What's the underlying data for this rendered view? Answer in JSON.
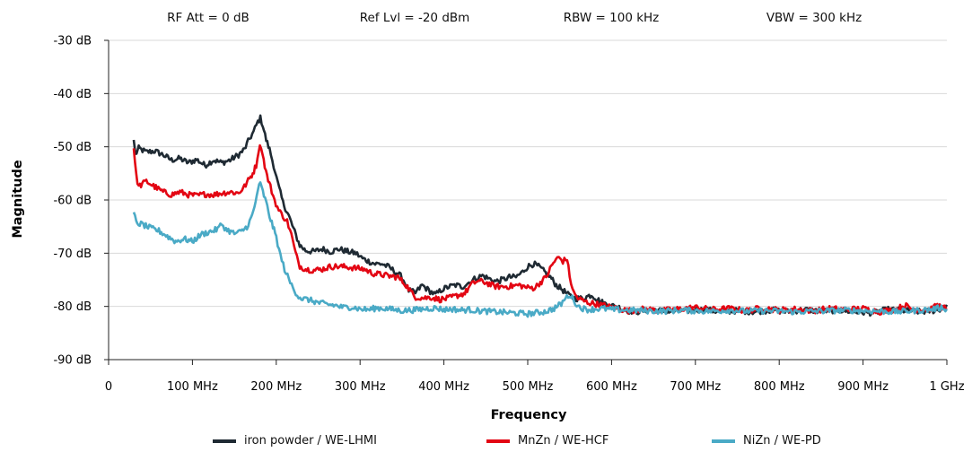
{
  "header": {
    "rf_att": "RF Att = 0 dB",
    "ref_lvl": "Ref Lvl = -20 dBm",
    "rbw": "RBW = 100 kHz",
    "vbw": "VBW = 300 kHz"
  },
  "chart_data": {
    "type": "line",
    "title": "",
    "xlabel": "Frequency",
    "ylabel": "Magnitude",
    "xlim": [
      0,
      1000
    ],
    "ylim": [
      -90,
      -30
    ],
    "x_unit": "MHz",
    "y_unit": "dB",
    "grid": {
      "horizontal": true,
      "vertical": false
    },
    "legend_position": "bottom",
    "x_ticks": [
      {
        "value": 0,
        "label": "0"
      },
      {
        "value": 100,
        "label": "100 MHz"
      },
      {
        "value": 200,
        "label": "200 MHz"
      },
      {
        "value": 300,
        "label": "300 MHz"
      },
      {
        "value": 400,
        "label": "400 MHz"
      },
      {
        "value": 500,
        "label": "500 MHz"
      },
      {
        "value": 600,
        "label": "600 MHz"
      },
      {
        "value": 700,
        "label": "700 MHz"
      },
      {
        "value": 800,
        "label": "800 MHz"
      },
      {
        "value": 900,
        "label": "900 MHz"
      },
      {
        "value": 1000,
        "label": "1 GHz"
      }
    ],
    "y_ticks": [
      {
        "value": -30,
        "label": "-30 dB"
      },
      {
        "value": -40,
        "label": "-40 dB"
      },
      {
        "value": -50,
        "label": "-50 dB"
      },
      {
        "value": -60,
        "label": "-60 dB"
      },
      {
        "value": -70,
        "label": "-70 dB"
      },
      {
        "value": -80,
        "label": "-80 dB"
      },
      {
        "value": -90,
        "label": "-90 dB"
      }
    ],
    "series": [
      {
        "name": "iron powder / WE-LHMI",
        "color": "#1f2a33",
        "points": [
          [
            30,
            -48.7
          ],
          [
            32,
            -51.5
          ],
          [
            36,
            -50.3
          ],
          [
            45,
            -51
          ],
          [
            55,
            -50.8
          ],
          [
            65,
            -51.5
          ],
          [
            75,
            -52.5
          ],
          [
            85,
            -52.2
          ],
          [
            95,
            -53
          ],
          [
            105,
            -52.4
          ],
          [
            115,
            -53.5
          ],
          [
            125,
            -52.5
          ],
          [
            135,
            -53
          ],
          [
            145,
            -52.5
          ],
          [
            155,
            -51.5
          ],
          [
            162,
            -50.5
          ],
          [
            168,
            -48.5
          ],
          [
            173,
            -47.2
          ],
          [
            178,
            -45.3
          ],
          [
            181,
            -44.6
          ],
          [
            184,
            -46
          ],
          [
            188,
            -48.7
          ],
          [
            192,
            -50.5
          ],
          [
            197,
            -53.5
          ],
          [
            202,
            -57
          ],
          [
            208,
            -60.5
          ],
          [
            215,
            -63
          ],
          [
            222,
            -66
          ],
          [
            228,
            -68.5
          ],
          [
            235,
            -69.5
          ],
          [
            245,
            -69.7
          ],
          [
            255,
            -69.2
          ],
          [
            265,
            -69.7
          ],
          [
            275,
            -69.2
          ],
          [
            285,
            -69.7
          ],
          [
            295,
            -70
          ],
          [
            303,
            -71
          ],
          [
            310,
            -71.5
          ],
          [
            318,
            -72
          ],
          [
            326,
            -72
          ],
          [
            334,
            -72.6
          ],
          [
            342,
            -73.5
          ],
          [
            350,
            -74.5
          ],
          [
            358,
            -77
          ],
          [
            366,
            -77.5
          ],
          [
            374,
            -76
          ],
          [
            382,
            -77
          ],
          [
            390,
            -77.8
          ],
          [
            398,
            -76.8
          ],
          [
            406,
            -76.3
          ],
          [
            414,
            -76
          ],
          [
            422,
            -76.3
          ],
          [
            430,
            -75.5
          ],
          [
            438,
            -74.7
          ],
          [
            446,
            -74.2
          ],
          [
            454,
            -74.8
          ],
          [
            462,
            -75.3
          ],
          [
            470,
            -75
          ],
          [
            478,
            -74.5
          ],
          [
            486,
            -74.5
          ],
          [
            494,
            -73.5
          ],
          [
            500,
            -72.5
          ],
          [
            507,
            -72
          ],
          [
            513,
            -72.5
          ],
          [
            520,
            -73.5
          ],
          [
            527,
            -74.5
          ],
          [
            534,
            -76
          ],
          [
            541,
            -76.8
          ],
          [
            548,
            -77.8
          ],
          [
            556,
            -78.5
          ],
          [
            566,
            -78.5
          ],
          [
            576,
            -77.8
          ],
          [
            586,
            -79
          ],
          [
            596,
            -79.8
          ],
          [
            606,
            -80
          ],
          [
            618,
            -80.8
          ],
          [
            630,
            -81
          ],
          [
            650,
            -80.6
          ],
          [
            670,
            -81
          ],
          [
            690,
            -80.8
          ],
          [
            710,
            -80.6
          ],
          [
            730,
            -81
          ],
          [
            750,
            -80.8
          ],
          [
            770,
            -81
          ],
          [
            790,
            -80.7
          ],
          [
            810,
            -81
          ],
          [
            830,
            -80.6
          ],
          [
            850,
            -80.9
          ],
          [
            870,
            -80.7
          ],
          [
            890,
            -81
          ],
          [
            910,
            -81.2
          ],
          [
            930,
            -80.6
          ],
          [
            950,
            -80.8
          ],
          [
            970,
            -81
          ],
          [
            990,
            -80.7
          ],
          [
            995,
            -80.2
          ],
          [
            1000,
            -79.7
          ]
        ]
      },
      {
        "name": "MnZn / WE-HCF",
        "color": "#e30613",
        "points": [
          [
            30,
            -50.3
          ],
          [
            33,
            -55.5
          ],
          [
            36,
            -57.5
          ],
          [
            40,
            -57
          ],
          [
            45,
            -56.5
          ],
          [
            55,
            -57.5
          ],
          [
            65,
            -58.5
          ],
          [
            75,
            -59
          ],
          [
            85,
            -58.5
          ],
          [
            95,
            -59
          ],
          [
            105,
            -59.2
          ],
          [
            115,
            -58.9
          ],
          [
            125,
            -59
          ],
          [
            135,
            -58.7
          ],
          [
            145,
            -58.5
          ],
          [
            155,
            -58.7
          ],
          [
            162,
            -57.5
          ],
          [
            168,
            -56
          ],
          [
            172,
            -55
          ],
          [
            176,
            -53.5
          ],
          [
            179,
            -50.5
          ],
          [
            182,
            -49.8
          ],
          [
            185,
            -52.5
          ],
          [
            189,
            -55.5
          ],
          [
            193,
            -57.5
          ],
          [
            198,
            -60
          ],
          [
            203,
            -62
          ],
          [
            208,
            -63
          ],
          [
            213,
            -64
          ],
          [
            218,
            -66.5
          ],
          [
            223,
            -70
          ],
          [
            228,
            -72.4
          ],
          [
            235,
            -73
          ],
          [
            245,
            -73.2
          ],
          [
            255,
            -73
          ],
          [
            265,
            -72.5
          ],
          [
            275,
            -72.5
          ],
          [
            285,
            -72.6
          ],
          [
            295,
            -72.8
          ],
          [
            305,
            -73
          ],
          [
            315,
            -73.8
          ],
          [
            325,
            -74
          ],
          [
            335,
            -74.3
          ],
          [
            345,
            -74.5
          ],
          [
            355,
            -76
          ],
          [
            365,
            -78.2
          ],
          [
            375,
            -78.4
          ],
          [
            385,
            -78.3
          ],
          [
            395,
            -78.7
          ],
          [
            405,
            -78.5
          ],
          [
            415,
            -78
          ],
          [
            425,
            -77.5
          ],
          [
            432,
            -76
          ],
          [
            440,
            -75.2
          ],
          [
            450,
            -75.5
          ],
          [
            460,
            -76.2
          ],
          [
            470,
            -76.3
          ],
          [
            480,
            -76.2
          ],
          [
            490,
            -76
          ],
          [
            500,
            -76.5
          ],
          [
            508,
            -76.5
          ],
          [
            515,
            -75.5
          ],
          [
            522,
            -74.5
          ],
          [
            528,
            -72.5
          ],
          [
            532,
            -71.5
          ],
          [
            537,
            -70.8
          ],
          [
            542,
            -71.5
          ],
          [
            547,
            -71
          ],
          [
            550,
            -74.5
          ],
          [
            555,
            -77.5
          ],
          [
            560,
            -78.5
          ],
          [
            570,
            -79.2
          ],
          [
            580,
            -79.5
          ],
          [
            590,
            -79.8
          ],
          [
            600,
            -80.2
          ],
          [
            610,
            -80.5
          ],
          [
            620,
            -80.8
          ],
          [
            640,
            -80.5
          ],
          [
            660,
            -80.8
          ],
          [
            680,
            -80.5
          ],
          [
            700,
            -80.2
          ],
          [
            720,
            -80.6
          ],
          [
            740,
            -80.4
          ],
          [
            760,
            -80.8
          ],
          [
            780,
            -80.3
          ],
          [
            800,
            -80.7
          ],
          [
            820,
            -80.5
          ],
          [
            840,
            -80.8
          ],
          [
            860,
            -80.4
          ],
          [
            880,
            -80.6
          ],
          [
            900,
            -80.4
          ],
          [
            920,
            -81
          ],
          [
            940,
            -80.5
          ],
          [
            950,
            -79.8
          ],
          [
            960,
            -80.6
          ],
          [
            980,
            -80.5
          ],
          [
            990,
            -79.8
          ],
          [
            1000,
            -80.5
          ]
        ]
      },
      {
        "name": "NiZn / WE-PD",
        "color": "#4aaac6",
        "points": [
          [
            30,
            -62.3
          ],
          [
            33,
            -64.3
          ],
          [
            40,
            -64.6
          ],
          [
            50,
            -65.3
          ],
          [
            60,
            -65.8
          ],
          [
            70,
            -66.8
          ],
          [
            80,
            -67.8
          ],
          [
            90,
            -67.3
          ],
          [
            100,
            -67.8
          ],
          [
            110,
            -66.5
          ],
          [
            120,
            -66
          ],
          [
            130,
            -65.5
          ],
          [
            135,
            -64.5
          ],
          [
            140,
            -65.5
          ],
          [
            150,
            -66.3
          ],
          [
            158,
            -66
          ],
          [
            165,
            -65
          ],
          [
            170,
            -63.5
          ],
          [
            174,
            -61.5
          ],
          [
            178,
            -58
          ],
          [
            181,
            -57
          ],
          [
            184,
            -58.5
          ],
          [
            188,
            -60.5
          ],
          [
            192,
            -63
          ],
          [
            196,
            -65
          ],
          [
            200,
            -67
          ],
          [
            205,
            -70.5
          ],
          [
            210,
            -73
          ],
          [
            215,
            -75
          ],
          [
            220,
            -76.5
          ],
          [
            225,
            -77.8
          ],
          [
            230,
            -78.5
          ],
          [
            240,
            -78.8
          ],
          [
            250,
            -79.3
          ],
          [
            260,
            -79.6
          ],
          [
            270,
            -79.8
          ],
          [
            280,
            -80.2
          ],
          [
            290,
            -80.1
          ],
          [
            300,
            -80.5
          ],
          [
            310,
            -80.6
          ],
          [
            320,
            -80.3
          ],
          [
            330,
            -80.4
          ],
          [
            340,
            -80.6
          ],
          [
            350,
            -80.8
          ],
          [
            360,
            -80.7
          ],
          [
            370,
            -80.6
          ],
          [
            380,
            -80.4
          ],
          [
            390,
            -80.3
          ],
          [
            400,
            -80.6
          ],
          [
            410,
            -80.5
          ],
          [
            420,
            -80.7
          ],
          [
            430,
            -80.6
          ],
          [
            440,
            -80.8
          ],
          [
            450,
            -80.9
          ],
          [
            460,
            -81
          ],
          [
            470,
            -81.1
          ],
          [
            480,
            -81.2
          ],
          [
            490,
            -81.3
          ],
          [
            500,
            -81.4
          ],
          [
            510,
            -81.2
          ],
          [
            520,
            -81
          ],
          [
            530,
            -80.5
          ],
          [
            540,
            -79.5
          ],
          [
            545,
            -78.5
          ],
          [
            550,
            -77.8
          ],
          [
            555,
            -78.8
          ],
          [
            560,
            -80
          ],
          [
            570,
            -80.6
          ],
          [
            580,
            -80.5
          ],
          [
            590,
            -80.4
          ],
          [
            600,
            -80.6
          ],
          [
            620,
            -80.7
          ],
          [
            640,
            -80.8
          ],
          [
            660,
            -80.9
          ],
          [
            680,
            -80.7
          ],
          [
            700,
            -80.8
          ],
          [
            720,
            -80.9
          ],
          [
            740,
            -80.7
          ],
          [
            760,
            -80.9
          ],
          [
            780,
            -80.8
          ],
          [
            800,
            -80.9
          ],
          [
            820,
            -81
          ],
          [
            840,
            -80.9
          ],
          [
            860,
            -80.8
          ],
          [
            880,
            -80.7
          ],
          [
            900,
            -80.8
          ],
          [
            920,
            -80.9
          ],
          [
            940,
            -81
          ],
          [
            960,
            -80.8
          ],
          [
            980,
            -80.6
          ],
          [
            995,
            -80.2
          ],
          [
            1000,
            -80.5
          ]
        ]
      }
    ]
  }
}
